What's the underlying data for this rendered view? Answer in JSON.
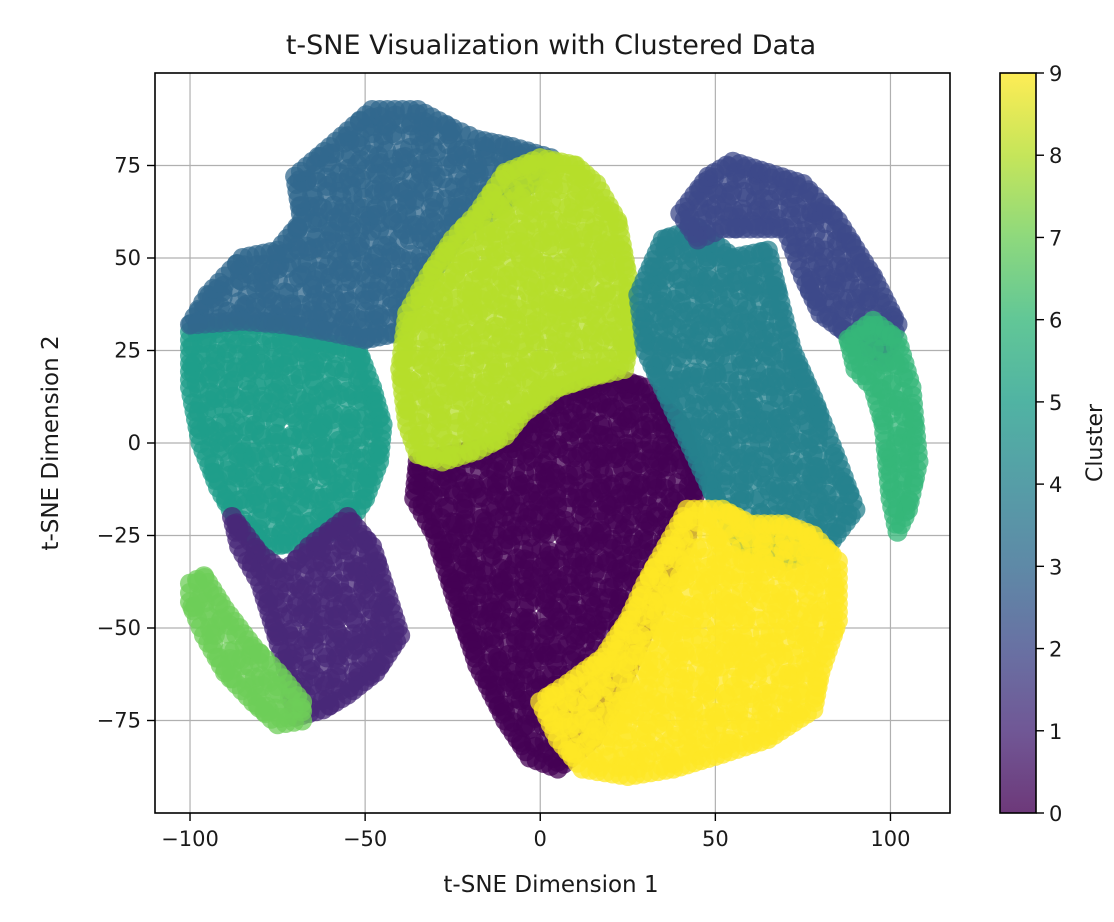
{
  "chart_data": {
    "type": "scatter",
    "title": "t-SNE Visualization with Clustered Data",
    "xlabel": "t-SNE Dimension 1",
    "ylabel": "t-SNE Dimension 2",
    "xlim": [
      -110,
      117
    ],
    "ylim": [
      -100,
      100
    ],
    "xticks": [
      -100,
      -50,
      0,
      50,
      100
    ],
    "yticks": [
      -75,
      -50,
      -25,
      0,
      25,
      50,
      75
    ],
    "xtick_labels": [
      "−100",
      "−50",
      "0",
      "50",
      "100"
    ],
    "ytick_labels": [
      "−75",
      "−50",
      "−25",
      "0",
      "25",
      "50",
      "75"
    ],
    "grid": true,
    "colormap": "viridis",
    "colorbar": {
      "label": "Cluster",
      "min": 0,
      "max": 9,
      "ticks": [
        0,
        1,
        2,
        3,
        4,
        5,
        6,
        7,
        8,
        9
      ],
      "tick_labels": [
        "0",
        "1",
        "2",
        "3",
        "4",
        "5",
        "6",
        "7",
        "8",
        "9"
      ]
    },
    "point_alpha": 0.75,
    "clusters": [
      {
        "label": 0,
        "color": "#440154",
        "polygon": [
          [
            -36,
            -15
          ],
          [
            -30,
            -25
          ],
          [
            -25,
            -40
          ],
          [
            -18,
            -60
          ],
          [
            -10,
            -75
          ],
          [
            -3,
            -85
          ],
          [
            5,
            -88
          ],
          [
            15,
            -80
          ],
          [
            22,
            -68
          ],
          [
            28,
            -55
          ],
          [
            35,
            -40
          ],
          [
            42,
            -25
          ],
          [
            45,
            -10
          ],
          [
            40,
            5
          ],
          [
            30,
            15
          ],
          [
            20,
            18
          ],
          [
            10,
            14
          ],
          [
            0,
            8
          ],
          [
            -10,
            0
          ],
          [
            -25,
            -3
          ],
          [
            -35,
            -5
          ]
        ]
      },
      {
        "label": 1,
        "color": "#482878",
        "polygon": [
          [
            -88,
            -20
          ],
          [
            -80,
            -30
          ],
          [
            -73,
            -35
          ],
          [
            -66,
            -28
          ],
          [
            -55,
            -20
          ],
          [
            -48,
            -28
          ],
          [
            -44,
            -40
          ],
          [
            -40,
            -52
          ],
          [
            -47,
            -62
          ],
          [
            -55,
            -68
          ],
          [
            -62,
            -72
          ],
          [
            -70,
            -74
          ],
          [
            -72,
            -63
          ],
          [
            -76,
            -50
          ],
          [
            -80,
            -38
          ],
          [
            -86,
            -28
          ]
        ]
      },
      {
        "label": 2,
        "color": "#3e4989",
        "polygon": [
          [
            40,
            62
          ],
          [
            48,
            72
          ],
          [
            55,
            76
          ],
          [
            65,
            73
          ],
          [
            75,
            70
          ],
          [
            85,
            60
          ],
          [
            95,
            45
          ],
          [
            102,
            32
          ],
          [
            98,
            22
          ],
          [
            90,
            28
          ],
          [
            80,
            35
          ],
          [
            75,
            45
          ],
          [
            70,
            58
          ],
          [
            60,
            58
          ],
          [
            52,
            58
          ],
          [
            45,
            55
          ]
        ]
      },
      {
        "label": 3,
        "color": "#31688e",
        "polygon": [
          [
            -100,
            32
          ],
          [
            -95,
            40
          ],
          [
            -85,
            50
          ],
          [
            -75,
            52
          ],
          [
            -68,
            60
          ],
          [
            -70,
            72
          ],
          [
            -60,
            80
          ],
          [
            -48,
            90
          ],
          [
            -35,
            90
          ],
          [
            -25,
            85
          ],
          [
            -18,
            82
          ],
          [
            -8,
            80
          ],
          [
            3,
            77
          ],
          [
            -3,
            70
          ],
          [
            -15,
            62
          ],
          [
            -22,
            58
          ],
          [
            -28,
            50
          ],
          [
            -35,
            40
          ],
          [
            -40,
            30
          ],
          [
            -50,
            28
          ],
          [
            -60,
            30
          ],
          [
            -72,
            32
          ],
          [
            -85,
            33
          ]
        ]
      },
      {
        "label": 4,
        "color": "#26828e",
        "polygon": [
          [
            28,
            40
          ],
          [
            35,
            55
          ],
          [
            45,
            58
          ],
          [
            55,
            50
          ],
          [
            65,
            52
          ],
          [
            68,
            40
          ],
          [
            72,
            25
          ],
          [
            78,
            12
          ],
          [
            85,
            -5
          ],
          [
            90,
            -18
          ],
          [
            82,
            -28
          ],
          [
            70,
            -32
          ],
          [
            58,
            -28
          ],
          [
            50,
            -15
          ],
          [
            45,
            -5
          ],
          [
            40,
            5
          ],
          [
            35,
            15
          ],
          [
            30,
            25
          ]
        ]
      },
      {
        "label": 5,
        "color": "#1f9e89",
        "polygon": [
          [
            -100,
            30
          ],
          [
            -90,
            32
          ],
          [
            -75,
            32
          ],
          [
            -65,
            28
          ],
          [
            -52,
            25
          ],
          [
            -48,
            15
          ],
          [
            -45,
            5
          ],
          [
            -46,
            -5
          ],
          [
            -50,
            -15
          ],
          [
            -55,
            -22
          ],
          [
            -62,
            -25
          ],
          [
            -70,
            -27
          ],
          [
            -78,
            -28
          ],
          [
            -86,
            -22
          ],
          [
            -92,
            -12
          ],
          [
            -97,
            0
          ],
          [
            -100,
            15
          ]
        ]
      },
      {
        "label": 6,
        "color": "#35b779",
        "polygon": [
          [
            88,
            28
          ],
          [
            95,
            33
          ],
          [
            102,
            28
          ],
          [
            106,
            15
          ],
          [
            108,
            -5
          ],
          [
            105,
            -18
          ],
          [
            102,
            -24
          ],
          [
            100,
            -15
          ],
          [
            98,
            5
          ],
          [
            95,
            15
          ],
          [
            90,
            20
          ]
        ]
      },
      {
        "label": 7,
        "color": "#6ece58",
        "polygon": [
          [
            -100,
            -38
          ],
          [
            -96,
            -36
          ],
          [
            -90,
            -45
          ],
          [
            -82,
            -55
          ],
          [
            -75,
            -62
          ],
          [
            -68,
            -70
          ],
          [
            -68,
            -75
          ],
          [
            -75,
            -76
          ],
          [
            -82,
            -70
          ],
          [
            -90,
            -62
          ],
          [
            -96,
            -52
          ],
          [
            -100,
            -43
          ]
        ]
      },
      {
        "label": 8,
        "color": "#b5de2b",
        "polygon": [
          [
            -10,
            73
          ],
          [
            0,
            77
          ],
          [
            10,
            75
          ],
          [
            16,
            70
          ],
          [
            22,
            60
          ],
          [
            25,
            45
          ],
          [
            26,
            30
          ],
          [
            24,
            20
          ],
          [
            15,
            18
          ],
          [
            5,
            15
          ],
          [
            -5,
            8
          ],
          [
            -10,
            2
          ],
          [
            -18,
            -2
          ],
          [
            -28,
            -5
          ],
          [
            -35,
            -3
          ],
          [
            -38,
            5
          ],
          [
            -40,
            20
          ],
          [
            -38,
            35
          ],
          [
            -32,
            45
          ],
          [
            -25,
            55
          ],
          [
            -18,
            62
          ]
        ]
      },
      {
        "label": 9,
        "color": "#fde725",
        "polygon": [
          [
            42,
            -18
          ],
          [
            52,
            -18
          ],
          [
            60,
            -22
          ],
          [
            70,
            -22
          ],
          [
            78,
            -25
          ],
          [
            85,
            -32
          ],
          [
            85,
            -48
          ],
          [
            80,
            -62
          ],
          [
            78,
            -72
          ],
          [
            65,
            -80
          ],
          [
            52,
            -84
          ],
          [
            38,
            -88
          ],
          [
            25,
            -90
          ],
          [
            12,
            -88
          ],
          [
            5,
            -80
          ],
          [
            0,
            -70
          ],
          [
            8,
            -65
          ],
          [
            18,
            -58
          ],
          [
            25,
            -48
          ],
          [
            30,
            -38
          ],
          [
            36,
            -28
          ]
        ]
      }
    ]
  }
}
